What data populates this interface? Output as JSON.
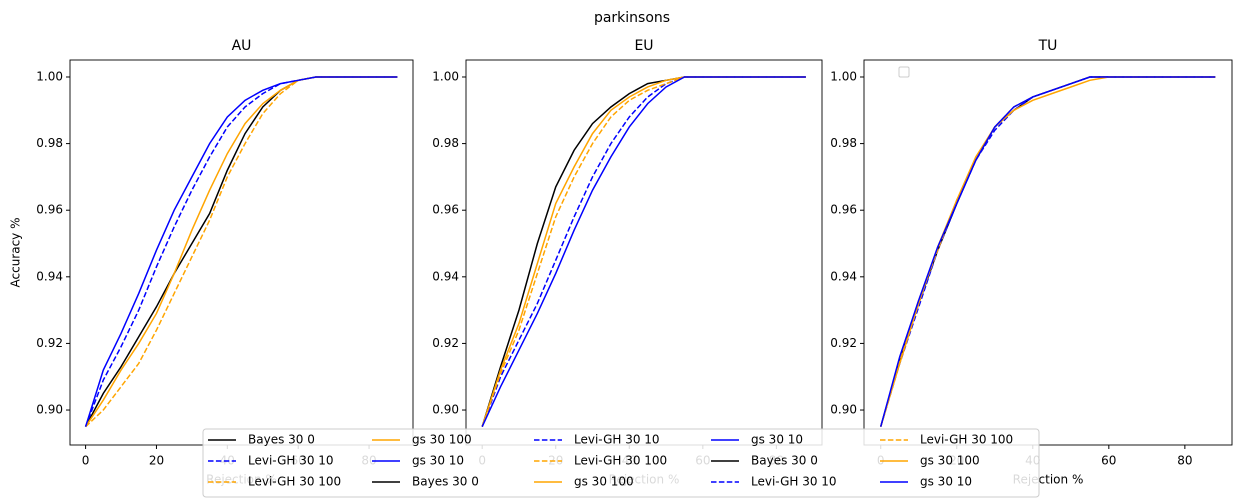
{
  "figure": {
    "title": "parkinsons"
  },
  "chart_data": [
    {
      "type": "line",
      "title": "AU",
      "xlabel": "Rejection %",
      "ylabel": "Accuracy %",
      "x": [
        0,
        5,
        10,
        15,
        20,
        25,
        30,
        35,
        40,
        45,
        50,
        55,
        60,
        65,
        70,
        88
      ],
      "xlim": [
        -4.4,
        92.4
      ],
      "ylim": [
        0.8895,
        1.0051
      ],
      "xticks": [
        0,
        20,
        40,
        60,
        80
      ],
      "yticks": [
        {
          "value": 0.9,
          "label": "0.90"
        },
        0.92,
        0.94,
        0.96,
        0.98,
        {
          "value": 1.0,
          "label": "1.00"
        }
      ],
      "series": [
        {
          "name": "Bayes 30 0",
          "color": "#000000",
          "linestyle": "solid",
          "values": [
            0.895,
            0.905,
            0.913,
            0.922,
            0.931,
            0.941,
            0.95,
            0.959,
            0.972,
            0.983,
            0.991,
            0.996,
            0.999,
            1.0,
            1.0,
            1.0
          ]
        },
        {
          "name": "Levi-GH 30 10",
          "color": "#0000ff",
          "linestyle": "dashed",
          "values": [
            0.895,
            0.909,
            0.919,
            0.93,
            0.943,
            0.955,
            0.966,
            0.976,
            0.985,
            0.991,
            0.995,
            0.998,
            0.999,
            1.0,
            1.0,
            1.0
          ]
        },
        {
          "name": "Levi-GH 30 100",
          "color": "#ffa500",
          "linestyle": "dashed",
          "values": [
            0.895,
            0.9,
            0.907,
            0.914,
            0.924,
            0.935,
            0.946,
            0.957,
            0.97,
            0.98,
            0.989,
            0.995,
            0.999,
            1.0,
            1.0,
            1.0
          ]
        },
        {
          "name": "gs 30 100",
          "color": "#ffa500",
          "linestyle": "solid",
          "values": [
            0.895,
            0.903,
            0.912,
            0.92,
            0.929,
            0.941,
            0.954,
            0.966,
            0.977,
            0.986,
            0.992,
            0.996,
            0.999,
            1.0,
            1.0,
            1.0
          ]
        },
        {
          "name": "gs 30 10",
          "color": "#0000ff",
          "linestyle": "solid",
          "values": [
            0.895,
            0.912,
            0.923,
            0.935,
            0.948,
            0.96,
            0.97,
            0.98,
            0.988,
            0.993,
            0.996,
            0.998,
            0.999,
            1.0,
            1.0,
            1.0
          ]
        }
      ]
    },
    {
      "type": "line",
      "title": "EU",
      "xlabel": "Rejection %",
      "x": [
        0,
        5,
        10,
        15,
        20,
        25,
        30,
        35,
        40,
        45,
        50,
        55,
        60,
        65,
        70,
        88
      ],
      "xlim": [
        -4.4,
        92.4
      ],
      "ylim": [
        0.8895,
        1.0051
      ],
      "xticks": [
        0,
        20,
        40,
        60,
        80
      ],
      "yticks": [
        {
          "value": 0.9,
          "label": "0.90"
        },
        0.92,
        0.94,
        0.96,
        0.98,
        {
          "value": 1.0,
          "label": "1.00"
        }
      ],
      "series": [
        {
          "name": "Bayes 30 0",
          "color": "#000000",
          "linestyle": "solid",
          "values": [
            0.895,
            0.913,
            0.93,
            0.95,
            0.967,
            0.978,
            0.986,
            0.991,
            0.995,
            0.998,
            0.999,
            1.0,
            1.0,
            1.0,
            1.0,
            1.0
          ]
        },
        {
          "name": "Levi-GH 30 10",
          "color": "#0000ff",
          "linestyle": "dashed",
          "values": [
            0.895,
            0.91,
            0.921,
            0.932,
            0.945,
            0.958,
            0.97,
            0.98,
            0.988,
            0.994,
            0.998,
            1.0,
            1.0,
            1.0,
            1.0,
            1.0
          ]
        },
        {
          "name": "Levi-GH 30 100",
          "color": "#ffa500",
          "linestyle": "dashed",
          "values": [
            0.895,
            0.911,
            0.924,
            0.941,
            0.958,
            0.97,
            0.98,
            0.988,
            0.993,
            0.996,
            0.998,
            1.0,
            1.0,
            1.0,
            1.0,
            1.0
          ]
        },
        {
          "name": "gs 30 100",
          "color": "#ffa500",
          "linestyle": "solid",
          "values": [
            0.895,
            0.912,
            0.926,
            0.944,
            0.962,
            0.973,
            0.983,
            0.99,
            0.994,
            0.997,
            0.999,
            1.0,
            1.0,
            1.0,
            1.0,
            1.0
          ]
        },
        {
          "name": "gs 30 10",
          "color": "#0000ff",
          "linestyle": "solid",
          "values": [
            0.895,
            0.907,
            0.918,
            0.929,
            0.941,
            0.954,
            0.966,
            0.976,
            0.985,
            0.992,
            0.997,
            1.0,
            1.0,
            1.0,
            1.0,
            1.0
          ]
        }
      ]
    },
    {
      "type": "line",
      "title": "TU",
      "xlabel": "Rejection %",
      "x": [
        0,
        5,
        10,
        15,
        20,
        25,
        30,
        35,
        40,
        45,
        50,
        55,
        60,
        65,
        70,
        88
      ],
      "xlim": [
        -4.4,
        92.4
      ],
      "ylim": [
        0.8895,
        1.0051
      ],
      "xticks": [
        0,
        20,
        40,
        60,
        80
      ],
      "yticks": [
        {
          "value": 0.9,
          "label": "0.90"
        },
        0.92,
        0.94,
        0.96,
        0.98,
        {
          "value": 1.0,
          "label": "1.00"
        }
      ],
      "series": [
        {
          "name": "Bayes 30 0",
          "color": "#000000",
          "linestyle": "solid",
          "values": [
            0.895,
            0.915,
            0.932,
            0.948,
            0.962,
            0.975,
            0.985,
            0.99,
            0.994,
            0.996,
            0.998,
            1.0,
            1.0,
            1.0,
            1.0,
            1.0
          ]
        },
        {
          "name": "Levi-GH 30 10",
          "color": "#0000ff",
          "linestyle": "dashed",
          "values": [
            0.895,
            0.914,
            0.931,
            0.948,
            0.962,
            0.975,
            0.984,
            0.99,
            0.994,
            0.996,
            0.998,
            1.0,
            1.0,
            1.0,
            1.0,
            1.0
          ]
        },
        {
          "name": "Levi-GH 30 100",
          "color": "#ffa500",
          "linestyle": "dashed",
          "values": [
            0.895,
            0.915,
            0.933,
            0.948,
            0.963,
            0.975,
            0.985,
            0.991,
            0.994,
            0.996,
            0.998,
            1.0,
            1.0,
            1.0,
            1.0,
            1.0
          ]
        },
        {
          "name": "gs 30 100",
          "color": "#ffa500",
          "linestyle": "solid",
          "values": [
            0.895,
            0.914,
            0.932,
            0.949,
            0.963,
            0.976,
            0.985,
            0.99,
            0.993,
            0.995,
            0.997,
            0.999,
            1.0,
            1.0,
            1.0,
            1.0
          ]
        },
        {
          "name": "gs 30 10",
          "color": "#0000ff",
          "linestyle": "solid",
          "values": [
            0.895,
            0.916,
            0.933,
            0.949,
            0.962,
            0.975,
            0.985,
            0.991,
            0.994,
            0.996,
            0.998,
            1.0,
            1.0,
            1.0,
            1.0,
            1.0
          ]
        }
      ]
    }
  ]
}
